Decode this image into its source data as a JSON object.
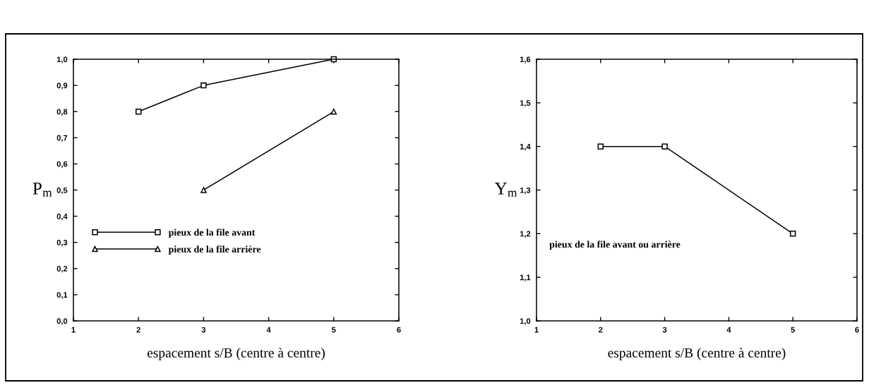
{
  "chart_data": [
    {
      "type": "line",
      "xlabel": "espacement s/B (centre à centre)",
      "ylabel": "P$_{m}$",
      "series": [
        {
          "name": "pieux de la file avant",
          "color": "#000000",
          "marker": "square",
          "x": [
            2,
            3,
            5
          ],
          "values": [
            0.8,
            0.9,
            1.0
          ]
        },
        {
          "name": "pieux de la file arrière",
          "color": "#000000",
          "marker": "triangle",
          "x": [
            3,
            5
          ],
          "values": [
            0.5,
            0.8
          ]
        }
      ],
      "xlim": [
        1,
        6
      ],
      "xticks": [
        1,
        2,
        3,
        4,
        5,
        6
      ],
      "ylim": [
        0,
        1
      ],
      "yticks": [
        {
          "value": 0,
          "label": "0,0"
        },
        {
          "value": 0.1,
          "label": "0,1"
        },
        {
          "value": 0.2,
          "label": "0,2"
        },
        {
          "value": 0.3,
          "label": "0,3"
        },
        {
          "value": 0.4,
          "label": "0,4"
        },
        {
          "value": 0.5,
          "label": "0,5"
        },
        {
          "value": 0.6,
          "label": "0,6"
        },
        {
          "value": 0.7,
          "label": "0,7"
        },
        {
          "value": 0.8,
          "label": "0,8"
        },
        {
          "value": 0.9,
          "label": "0,9"
        },
        {
          "value": 1.0,
          "label": "1,0"
        }
      ],
      "legend": "lower left",
      "line_style": "solid"
    },
    {
      "type": "line",
      "xlabel": "espacement s/B (centre à centre)",
      "ylabel": "Y$_{m}$",
      "series": [
        {
          "color": "#000000",
          "marker": "square",
          "x": [
            2,
            3,
            5
          ],
          "values": [
            1.4,
            1.4,
            1.2
          ]
        }
      ],
      "xlim": [
        1,
        6
      ],
      "xticks": [
        1,
        2,
        3,
        4,
        5,
        6
      ],
      "ylim": [
        1.0,
        1.6
      ],
      "yticks": [
        {
          "value": 1.0,
          "label": "1,0"
        },
        {
          "value": 1.1,
          "label": "1,1"
        },
        {
          "value": 1.2,
          "label": "1,2"
        },
        {
          "value": 1.3,
          "label": "1,3"
        },
        {
          "value": 1.4,
          "label": "1,4"
        },
        {
          "value": 1.5,
          "label": "1,5"
        },
        {
          "value": 1.6,
          "label": "1,6"
        }
      ],
      "annotations": [
        "pieux de la file avant ou arrière"
      ],
      "line_style": "solid"
    }
  ]
}
